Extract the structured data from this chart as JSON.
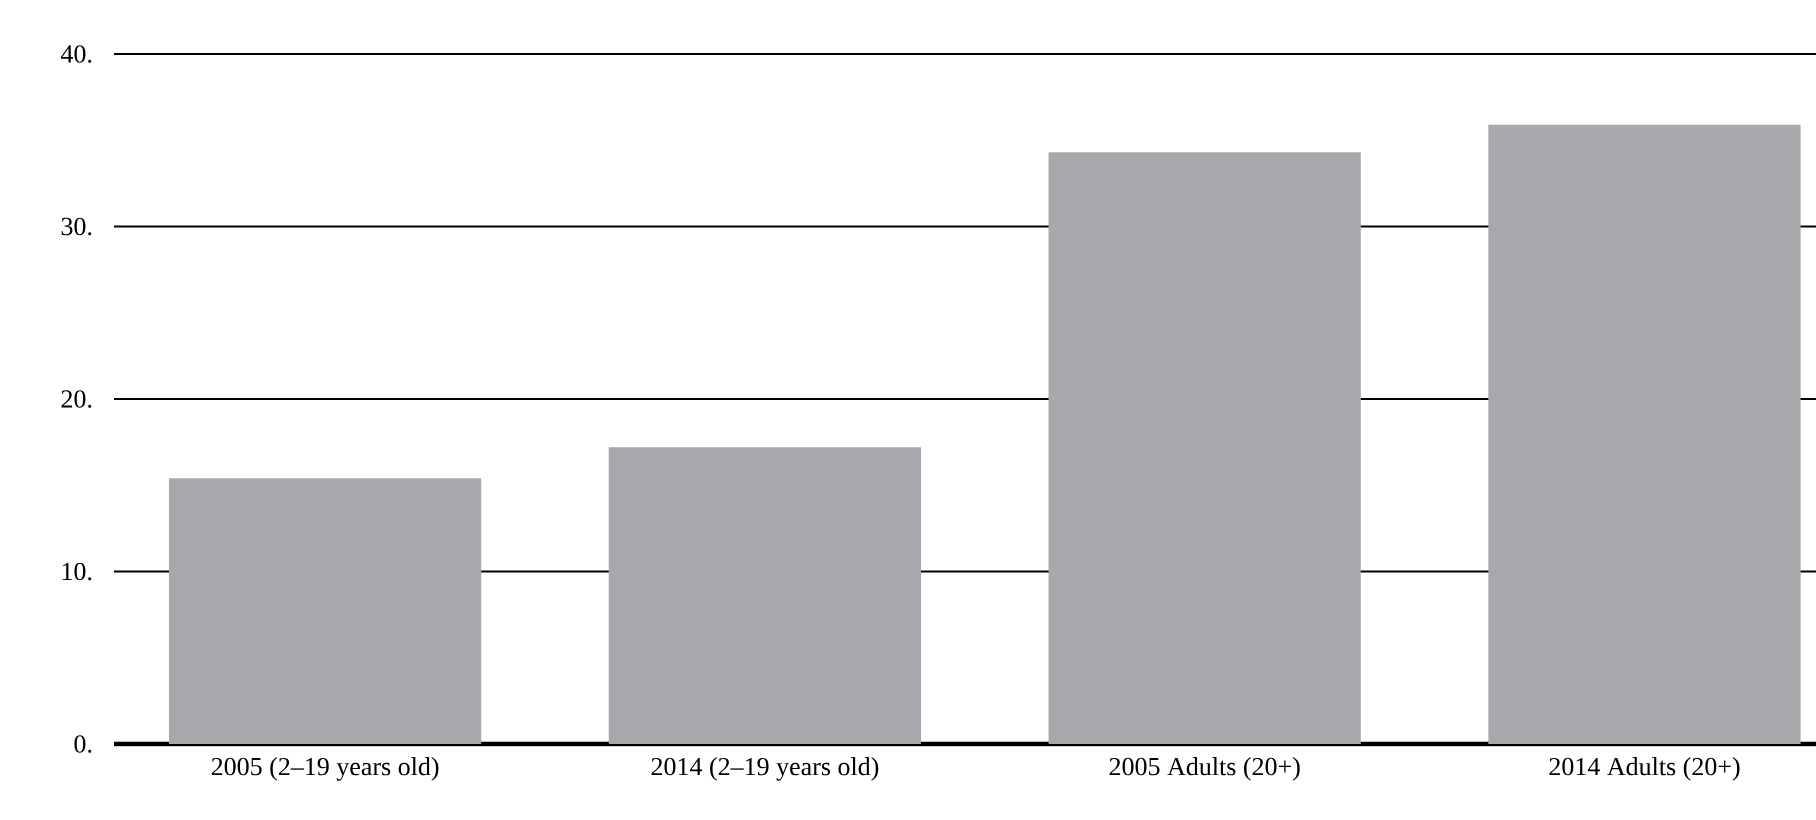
{
  "chart_data": {
    "type": "bar",
    "categories": [
      "2005 (2–19 years old)",
      "2014 (2–19 years old)",
      "2005 Adults (20+)",
      "2014 Adults (20+)"
    ],
    "values": [
      15.4,
      17.2,
      34.3,
      35.9
    ],
    "color": "#a7a8ab",
    "ylim": [
      0,
      40
    ],
    "yticks": [
      {
        "value": 0,
        "label": "0."
      },
      {
        "value": 10,
        "label": "10."
      },
      {
        "value": 20,
        "label": "20."
      },
      {
        "value": 30,
        "label": "30."
      },
      {
        "value": 40,
        "label": "40."
      }
    ],
    "grid": "y"
  }
}
